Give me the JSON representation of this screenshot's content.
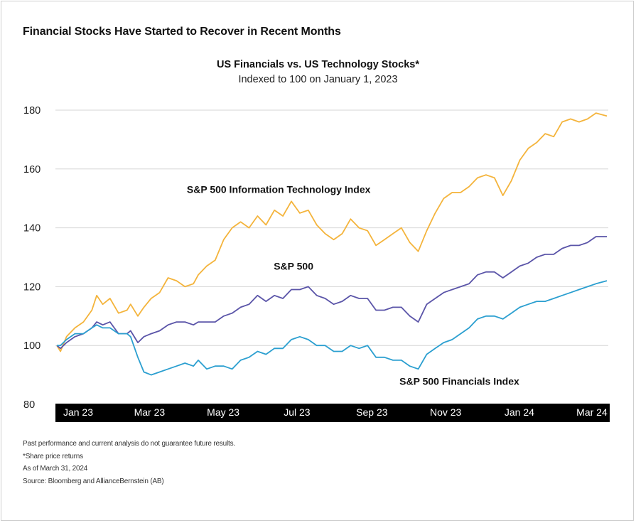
{
  "heading": "Financial Stocks Have Started to Recover in Recent Months",
  "notes": [
    "Past performance and current analysis do not guarantee future results.",
    "*Share price returns",
    "As of March 31, 2024",
    "Source: Bloomberg and AllianceBernstein (AB)"
  ],
  "chart_data": {
    "type": "line",
    "title": "US Financials vs. US Technology Stocks*",
    "subtitle": "Indexed to 100 on January 1, 2023",
    "xlabel": "",
    "ylabel": "",
    "ylim": [
      80,
      180
    ],
    "yticks": [
      80,
      100,
      120,
      140,
      160,
      180
    ],
    "xlim": [
      "2023-01-01",
      "2024-03-31"
    ],
    "xticks": [
      {
        "label": "Jan 23",
        "date": "2023-01-01"
      },
      {
        "label": "Mar 23",
        "date": "2023-03-01"
      },
      {
        "label": "May 23",
        "date": "2023-05-01"
      },
      {
        "label": "Jul 23",
        "date": "2023-07-01"
      },
      {
        "label": "Sep 23",
        "date": "2023-09-01"
      },
      {
        "label": "Nov 23",
        "date": "2023-11-01"
      },
      {
        "label": "Jan 24",
        "date": "2024-01-01"
      },
      {
        "label": "Mar 24",
        "date": "2024-03-01"
      }
    ],
    "grid": true,
    "series": [
      {
        "name": "S&P 500 Information Technology Index",
        "color": "#f4b43c",
        "label_anchor": [
          "2023-07-01",
          149
        ],
        "points": [
          [
            "2023-01-01",
            100
          ],
          [
            "2023-01-04",
            98
          ],
          [
            "2023-01-09",
            103
          ],
          [
            "2023-01-16",
            106
          ],
          [
            "2023-01-23",
            108
          ],
          [
            "2023-01-30",
            112
          ],
          [
            "2023-02-03",
            117
          ],
          [
            "2023-02-08",
            114
          ],
          [
            "2023-02-14",
            116
          ],
          [
            "2023-02-21",
            111
          ],
          [
            "2023-02-28",
            112
          ],
          [
            "2023-03-03",
            114
          ],
          [
            "2023-03-09",
            110
          ],
          [
            "2023-03-14",
            113
          ],
          [
            "2023-03-20",
            116
          ],
          [
            "2023-03-27",
            118
          ],
          [
            "2023-04-03",
            123
          ],
          [
            "2023-04-10",
            122
          ],
          [
            "2023-04-17",
            120
          ],
          [
            "2023-04-24",
            121
          ],
          [
            "2023-04-28",
            124
          ],
          [
            "2023-05-05",
            127
          ],
          [
            "2023-05-12",
            129
          ],
          [
            "2023-05-19",
            136
          ],
          [
            "2023-05-26",
            140
          ],
          [
            "2023-06-02",
            142
          ],
          [
            "2023-06-09",
            140
          ],
          [
            "2023-06-16",
            144
          ],
          [
            "2023-06-23",
            141
          ],
          [
            "2023-06-30",
            146
          ],
          [
            "2023-07-07",
            144
          ],
          [
            "2023-07-14",
            149
          ],
          [
            "2023-07-21",
            145
          ],
          [
            "2023-07-28",
            146
          ],
          [
            "2023-08-04",
            141
          ],
          [
            "2023-08-11",
            138
          ],
          [
            "2023-08-18",
            136
          ],
          [
            "2023-08-25",
            138
          ],
          [
            "2023-09-01",
            143
          ],
          [
            "2023-09-08",
            140
          ],
          [
            "2023-09-15",
            139
          ],
          [
            "2023-09-22",
            134
          ],
          [
            "2023-09-29",
            136
          ],
          [
            "2023-10-06",
            138
          ],
          [
            "2023-10-13",
            140
          ],
          [
            "2023-10-20",
            135
          ],
          [
            "2023-10-27",
            132
          ],
          [
            "2023-11-03",
            139
          ],
          [
            "2023-11-10",
            145
          ],
          [
            "2023-11-17",
            150
          ],
          [
            "2023-11-24",
            152
          ],
          [
            "2023-12-01",
            152
          ],
          [
            "2023-12-08",
            154
          ],
          [
            "2023-12-15",
            157
          ],
          [
            "2023-12-22",
            158
          ],
          [
            "2023-12-29",
            157
          ],
          [
            "2024-01-05",
            151
          ],
          [
            "2024-01-12",
            156
          ],
          [
            "2024-01-19",
            163
          ],
          [
            "2024-01-26",
            167
          ],
          [
            "2024-02-02",
            169
          ],
          [
            "2024-02-09",
            172
          ],
          [
            "2024-02-16",
            171
          ],
          [
            "2024-02-23",
            176
          ],
          [
            "2024-03-01",
            177
          ],
          [
            "2024-03-08",
            176
          ],
          [
            "2024-03-15",
            177
          ],
          [
            "2024-03-22",
            179
          ],
          [
            "2024-03-31",
            178
          ]
        ]
      },
      {
        "name": "S&P 500",
        "color": "#5a54a8",
        "label_anchor": [
          "2023-07-10",
          121
        ],
        "points": [
          [
            "2023-01-01",
            100
          ],
          [
            "2023-01-04",
            99
          ],
          [
            "2023-01-09",
            101
          ],
          [
            "2023-01-16",
            103
          ],
          [
            "2023-01-23",
            104
          ],
          [
            "2023-01-30",
            106
          ],
          [
            "2023-02-03",
            108
          ],
          [
            "2023-02-08",
            107
          ],
          [
            "2023-02-14",
            108
          ],
          [
            "2023-02-21",
            104
          ],
          [
            "2023-02-28",
            104
          ],
          [
            "2023-03-03",
            105
          ],
          [
            "2023-03-09",
            101
          ],
          [
            "2023-03-14",
            103
          ],
          [
            "2023-03-20",
            104
          ],
          [
            "2023-03-27",
            105
          ],
          [
            "2023-04-03",
            107
          ],
          [
            "2023-04-10",
            108
          ],
          [
            "2023-04-17",
            108
          ],
          [
            "2023-04-24",
            107
          ],
          [
            "2023-04-28",
            108
          ],
          [
            "2023-05-05",
            108
          ],
          [
            "2023-05-12",
            108
          ],
          [
            "2023-05-19",
            110
          ],
          [
            "2023-05-26",
            111
          ],
          [
            "2023-06-02",
            113
          ],
          [
            "2023-06-09",
            114
          ],
          [
            "2023-06-16",
            117
          ],
          [
            "2023-06-23",
            115
          ],
          [
            "2023-06-30",
            117
          ],
          [
            "2023-07-07",
            116
          ],
          [
            "2023-07-14",
            119
          ],
          [
            "2023-07-21",
            119
          ],
          [
            "2023-07-28",
            120
          ],
          [
            "2023-08-04",
            117
          ],
          [
            "2023-08-11",
            116
          ],
          [
            "2023-08-18",
            114
          ],
          [
            "2023-08-25",
            115
          ],
          [
            "2023-09-01",
            117
          ],
          [
            "2023-09-08",
            116
          ],
          [
            "2023-09-15",
            116
          ],
          [
            "2023-09-22",
            112
          ],
          [
            "2023-09-29",
            112
          ],
          [
            "2023-10-06",
            113
          ],
          [
            "2023-10-13",
            113
          ],
          [
            "2023-10-20",
            110
          ],
          [
            "2023-10-27",
            108
          ],
          [
            "2023-11-03",
            114
          ],
          [
            "2023-11-10",
            116
          ],
          [
            "2023-11-17",
            118
          ],
          [
            "2023-11-24",
            119
          ],
          [
            "2023-12-01",
            120
          ],
          [
            "2023-12-08",
            121
          ],
          [
            "2023-12-15",
            124
          ],
          [
            "2023-12-22",
            125
          ],
          [
            "2023-12-29",
            125
          ],
          [
            "2024-01-05",
            123
          ],
          [
            "2024-01-12",
            125
          ],
          [
            "2024-01-19",
            127
          ],
          [
            "2024-01-26",
            128
          ],
          [
            "2024-02-02",
            130
          ],
          [
            "2024-02-09",
            131
          ],
          [
            "2024-02-16",
            131
          ],
          [
            "2024-02-23",
            133
          ],
          [
            "2024-03-01",
            134
          ],
          [
            "2024-03-08",
            134
          ],
          [
            "2024-03-15",
            135
          ],
          [
            "2024-03-22",
            137
          ],
          [
            "2024-03-31",
            137
          ]
        ]
      },
      {
        "name": "S&P 500 Financials Index",
        "color": "#2b9fd0",
        "label_anchor": [
          "2023-09-15",
          92
        ],
        "points": [
          [
            "2023-01-01",
            100
          ],
          [
            "2023-01-04",
            100
          ],
          [
            "2023-01-09",
            102
          ],
          [
            "2023-01-16",
            104
          ],
          [
            "2023-01-23",
            104
          ],
          [
            "2023-01-30",
            106
          ],
          [
            "2023-02-03",
            107
          ],
          [
            "2023-02-08",
            106
          ],
          [
            "2023-02-14",
            106
          ],
          [
            "2023-02-21",
            104
          ],
          [
            "2023-02-28",
            104
          ],
          [
            "2023-03-03",
            103
          ],
          [
            "2023-03-09",
            96
          ],
          [
            "2023-03-14",
            91
          ],
          [
            "2023-03-20",
            90
          ],
          [
            "2023-03-27",
            91
          ],
          [
            "2023-04-03",
            92
          ],
          [
            "2023-04-10",
            93
          ],
          [
            "2023-04-17",
            94
          ],
          [
            "2023-04-24",
            93
          ],
          [
            "2023-04-28",
            95
          ],
          [
            "2023-05-05",
            92
          ],
          [
            "2023-05-12",
            93
          ],
          [
            "2023-05-19",
            93
          ],
          [
            "2023-05-26",
            92
          ],
          [
            "2023-06-02",
            95
          ],
          [
            "2023-06-09",
            96
          ],
          [
            "2023-06-16",
            98
          ],
          [
            "2023-06-23",
            97
          ],
          [
            "2023-06-30",
            99
          ],
          [
            "2023-07-07",
            99
          ],
          [
            "2023-07-14",
            102
          ],
          [
            "2023-07-21",
            103
          ],
          [
            "2023-07-28",
            102
          ],
          [
            "2023-08-04",
            100
          ],
          [
            "2023-08-11",
            100
          ],
          [
            "2023-08-18",
            98
          ],
          [
            "2023-08-25",
            98
          ],
          [
            "2023-09-01",
            100
          ],
          [
            "2023-09-08",
            99
          ],
          [
            "2023-09-15",
            100
          ],
          [
            "2023-09-22",
            96
          ],
          [
            "2023-09-29",
            96
          ],
          [
            "2023-10-06",
            95
          ],
          [
            "2023-10-13",
            95
          ],
          [
            "2023-10-20",
            93
          ],
          [
            "2023-10-27",
            92
          ],
          [
            "2023-11-03",
            97
          ],
          [
            "2023-11-10",
            99
          ],
          [
            "2023-11-17",
            101
          ],
          [
            "2023-11-24",
            102
          ],
          [
            "2023-12-01",
            104
          ],
          [
            "2023-12-08",
            106
          ],
          [
            "2023-12-15",
            109
          ],
          [
            "2023-12-22",
            110
          ],
          [
            "2023-12-29",
            110
          ],
          [
            "2024-01-05",
            109
          ],
          [
            "2024-01-12",
            111
          ],
          [
            "2024-01-19",
            113
          ],
          [
            "2024-01-26",
            114
          ],
          [
            "2024-02-02",
            115
          ],
          [
            "2024-02-09",
            115
          ],
          [
            "2024-02-16",
            116
          ],
          [
            "2024-02-23",
            117
          ],
          [
            "2024-03-01",
            118
          ],
          [
            "2024-03-08",
            119
          ],
          [
            "2024-03-15",
            120
          ],
          [
            "2024-03-22",
            121
          ],
          [
            "2024-03-31",
            122
          ]
        ]
      }
    ]
  }
}
